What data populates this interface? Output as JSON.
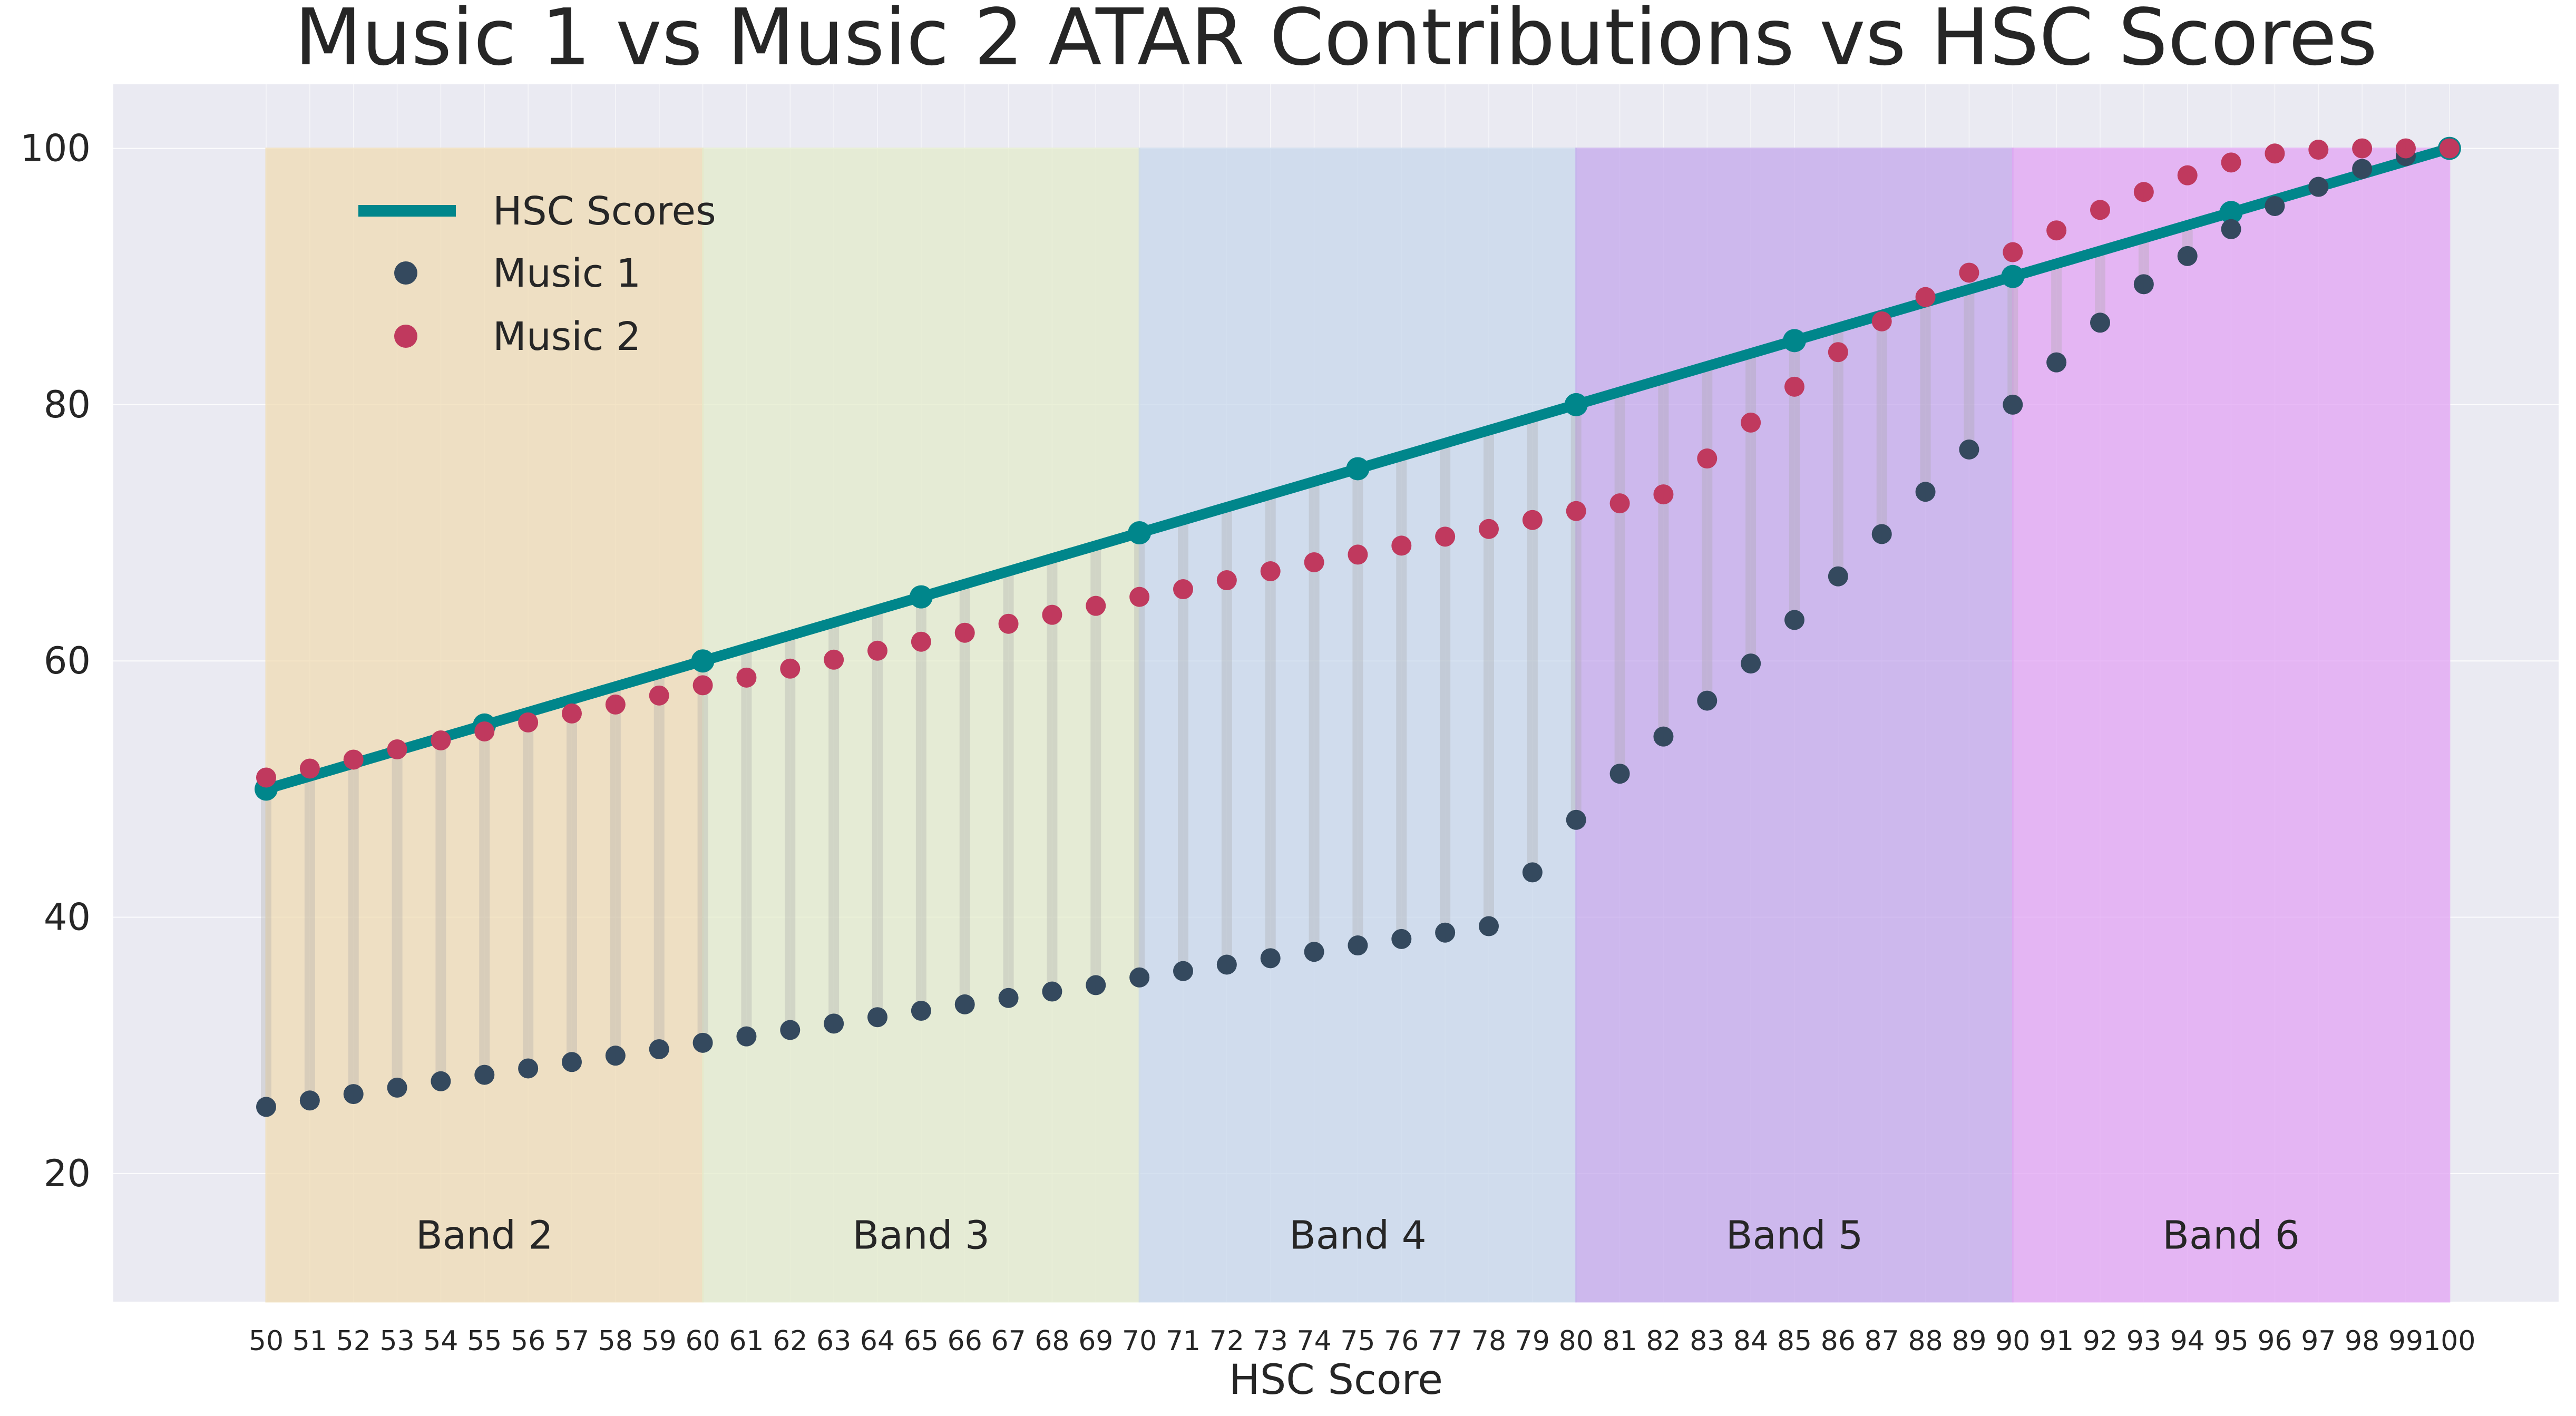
{
  "chart_data": {
    "type": "scatter",
    "title": "Music 1 vs Music 2 ATAR Contributions vs HSC Scores",
    "xlabel": "HSC Score",
    "ylabel": "",
    "xlim": [
      46.5,
      102.5
    ],
    "ylim": [
      10,
      105
    ],
    "y_ticks": [
      20,
      40,
      60,
      80,
      100
    ],
    "x_ticks": [
      50,
      51,
      52,
      53,
      54,
      55,
      56,
      57,
      58,
      59,
      60,
      61,
      62,
      63,
      64,
      65,
      66,
      67,
      68,
      69,
      70,
      71,
      72,
      73,
      74,
      75,
      76,
      77,
      78,
      79,
      80,
      81,
      82,
      83,
      84,
      85,
      86,
      87,
      88,
      89,
      90,
      91,
      92,
      93,
      94,
      95,
      96,
      97,
      98,
      99,
      100
    ],
    "grid": true,
    "legend": {
      "position": "top-left",
      "entries": [
        "HSC Scores",
        "Music 1",
        "Music 2"
      ]
    },
    "colors": {
      "hsc": "#00868b",
      "music1": "#34495e",
      "music2": "#c0395e",
      "background": "#eaeaf2",
      "grid": "#ffffff",
      "connector": "#a6a6a6"
    },
    "bands": [
      {
        "label": "Band 2",
        "from": 50,
        "to": 60,
        "color": "#f0dcb4"
      },
      {
        "label": "Band 3",
        "from": 60,
        "to": 70,
        "color": "#e4eccc"
      },
      {
        "label": "Band 4",
        "from": 70,
        "to": 80,
        "color": "#c8d8ec"
      },
      {
        "label": "Band 5",
        "from": 80,
        "to": 90,
        "color": "#c4a8ec"
      },
      {
        "label": "Band 6",
        "from": 90,
        "to": 100,
        "color": "#e2a4f4"
      }
    ],
    "hsc_line": {
      "name": "HSC Scores",
      "x": [
        50,
        55,
        60,
        65,
        70,
        75,
        80,
        85,
        90,
        95,
        100
      ],
      "y": [
        50,
        55,
        60,
        65,
        70,
        75,
        80,
        85,
        90,
        95,
        100
      ]
    },
    "x": [
      50,
      51,
      52,
      53,
      54,
      55,
      56,
      57,
      58,
      59,
      60,
      61,
      62,
      63,
      64,
      65,
      66,
      67,
      68,
      69,
      70,
      71,
      72,
      73,
      74,
      75,
      76,
      77,
      78,
      79,
      80,
      81,
      82,
      83,
      84,
      85,
      86,
      87,
      88,
      89,
      90,
      91,
      92,
      93,
      94,
      95,
      96,
      97,
      98,
      99,
      100
    ],
    "series": [
      {
        "name": "Music 1",
        "values": [
          25.2,
          25.7,
          26.2,
          26.7,
          27.2,
          27.7,
          28.2,
          28.7,
          29.2,
          29.7,
          30.2,
          30.7,
          31.2,
          31.7,
          32.2,
          32.7,
          33.2,
          33.7,
          34.2,
          34.7,
          35.3,
          35.8,
          36.3,
          36.8,
          37.3,
          37.8,
          38.3,
          38.8,
          39.3,
          43.5,
          47.6,
          51.2,
          54.1,
          56.9,
          59.8,
          63.2,
          66.6,
          69.9,
          73.2,
          76.5,
          80.0,
          83.3,
          86.4,
          89.4,
          91.6,
          93.7,
          95.5,
          97.0,
          98.4,
          99.4,
          100.0
        ]
      },
      {
        "name": "Music 2",
        "values": [
          50.9,
          51.6,
          52.3,
          53.1,
          53.8,
          54.5,
          55.2,
          55.9,
          56.6,
          57.3,
          58.1,
          58.7,
          59.4,
          60.1,
          60.8,
          61.5,
          62.2,
          62.9,
          63.6,
          64.3,
          65.0,
          65.6,
          66.3,
          67.0,
          67.7,
          68.3,
          69.0,
          69.7,
          70.3,
          71.0,
          71.7,
          72.3,
          73.0,
          75.8,
          78.6,
          81.4,
          84.1,
          86.5,
          88.4,
          90.3,
          91.9,
          93.6,
          95.2,
          96.6,
          97.9,
          98.9,
          99.6,
          99.9,
          100.0,
          100.0,
          100.0
        ]
      }
    ]
  }
}
